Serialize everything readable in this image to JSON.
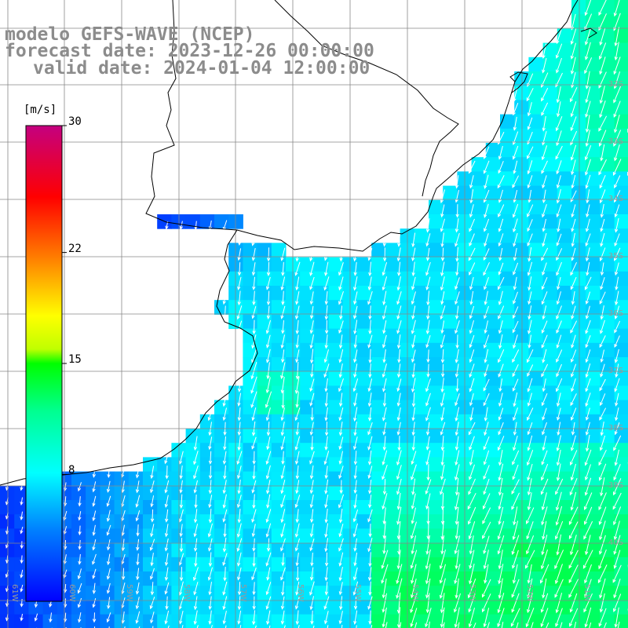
{
  "title": {
    "line1": "modelo GEFS-WAVE (NCEP)",
    "line2": "forecast date: 2023-12-26 00:00:00",
    "line3": "valid date: 2024-01-04 12:00:00"
  },
  "colorbar": {
    "units": "[m/s]",
    "ticks": [
      "30",
      "22",
      "15",
      "8"
    ],
    "tick_values": [
      30,
      22,
      15,
      8
    ],
    "range": [
      0,
      30
    ],
    "colors": [
      "#0000ff",
      "#0080ff",
      "#00ffff",
      "#00ff00",
      "#ffff00",
      "#ff8000",
      "#ff0000",
      "#c80080"
    ]
  },
  "lat_labels": [
    "32S",
    "33S",
    "34S",
    "35S",
    "36S",
    "37S",
    "38S",
    "39S",
    "40S"
  ],
  "lon_labels": [
    "61W",
    "60W",
    "59W",
    "58W",
    "57W",
    "56W",
    "55W",
    "54W",
    "53W",
    "52W",
    "51W"
  ],
  "field": {
    "wind_direction": "from north-northeast",
    "speed_range_ms": [
      2,
      13
    ]
  }
}
